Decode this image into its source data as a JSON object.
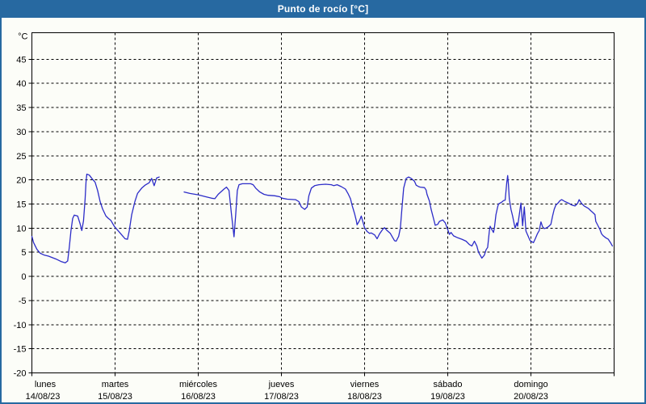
{
  "window": {
    "title": "Punto de rocío [°C]"
  },
  "colors": {
    "header_bg": "#2769a1",
    "header_text": "#ffffff",
    "frame": "#2769a1",
    "background": "#fcfdf8",
    "line": "#2c2cc8",
    "axis": "#000000"
  },
  "chart_data": {
    "type": "line",
    "title": "Punto de rocío [°C]",
    "ylabel": "°C",
    "ylim": [
      -20,
      50.5
    ],
    "yticks": [
      45,
      40,
      35,
      30,
      25,
      20,
      15,
      10,
      5,
      0,
      -5,
      -10,
      -15,
      -20
    ],
    "grid": true,
    "legend": "none",
    "x_axis": {
      "unit": "days from lunes 14/08/23 00:00",
      "days": [
        {
          "name": "lunes",
          "date": "14/08/23"
        },
        {
          "name": "martes",
          "date": "15/08/23"
        },
        {
          "name": "miércoles",
          "date": "16/08/23"
        },
        {
          "name": "jueves",
          "date": "17/08/23"
        },
        {
          "name": "viernes",
          "date": "18/08/23"
        },
        {
          "name": "sábado",
          "date": "19/08/23"
        },
        {
          "name": "domingo",
          "date": "20/08/23"
        }
      ]
    },
    "series": [
      {
        "name": "punto de rocío",
        "color": "#2c2cc8",
        "segments": [
          [
            [
              0.0,
              8.3
            ],
            [
              0.02,
              7.0
            ],
            [
              0.06,
              5.6
            ],
            [
              0.1,
              4.8
            ],
            [
              0.15,
              4.4
            ],
            [
              0.2,
              4.2
            ],
            [
              0.29,
              3.6
            ],
            [
              0.35,
              3.1
            ],
            [
              0.4,
              2.8
            ],
            [
              0.43,
              3.2
            ],
            [
              0.45,
              6.0
            ],
            [
              0.47,
              9.5
            ],
            [
              0.49,
              12.0
            ],
            [
              0.51,
              12.7
            ],
            [
              0.55,
              12.5
            ],
            [
              0.58,
              10.9
            ],
            [
              0.6,
              9.5
            ],
            [
              0.62,
              11.5
            ],
            [
              0.64,
              16.0
            ],
            [
              0.65,
              19.5
            ],
            [
              0.66,
              21.2
            ],
            [
              0.69,
              21.0
            ],
            [
              0.72,
              20.3
            ],
            [
              0.76,
              19.5
            ],
            [
              0.79,
              17.8
            ],
            [
              0.82,
              15.5
            ],
            [
              0.85,
              14.0
            ],
            [
              0.89,
              12.5
            ],
            [
              0.92,
              12.0
            ],
            [
              0.95,
              11.6
            ],
            [
              0.99,
              10.4
            ],
            [
              1.01,
              10.0
            ],
            [
              1.04,
              9.4
            ],
            [
              1.09,
              8.4
            ],
            [
              1.12,
              7.8
            ],
            [
              1.15,
              7.7
            ],
            [
              1.17,
              9.4
            ],
            [
              1.2,
              12.8
            ],
            [
              1.24,
              15.6
            ],
            [
              1.27,
              17.2
            ],
            [
              1.32,
              18.3
            ],
            [
              1.36,
              18.9
            ],
            [
              1.41,
              19.4
            ],
            [
              1.44,
              20.3
            ],
            [
              1.47,
              18.8
            ],
            [
              1.5,
              20.4
            ],
            [
              1.53,
              20.6
            ]
          ],
          [
            [
              1.83,
              17.5
            ],
            [
              1.9,
              17.2
            ],
            [
              2.0,
              16.9
            ],
            [
              2.09,
              16.5
            ],
            [
              2.16,
              16.2
            ],
            [
              2.2,
              16.1
            ],
            [
              2.24,
              17.0
            ],
            [
              2.31,
              18.1
            ],
            [
              2.34,
              18.5
            ],
            [
              2.37,
              17.8
            ],
            [
              2.4,
              12.8
            ],
            [
              2.43,
              8.2
            ],
            [
              2.45,
              12.8
            ],
            [
              2.47,
              17.8
            ],
            [
              2.49,
              19.0
            ],
            [
              2.53,
              19.2
            ],
            [
              2.63,
              19.2
            ],
            [
              2.66,
              19.0
            ],
            [
              2.69,
              18.3
            ],
            [
              2.74,
              17.5
            ],
            [
              2.79,
              17.0
            ],
            [
              2.84,
              16.8
            ],
            [
              2.92,
              16.7
            ],
            [
              2.98,
              16.5
            ],
            [
              3.01,
              16.2
            ],
            [
              3.07,
              16.0
            ],
            [
              3.17,
              15.9
            ],
            [
              3.21,
              15.5
            ],
            [
              3.24,
              14.4
            ],
            [
              3.28,
              13.9
            ],
            [
              3.31,
              14.4
            ],
            [
              3.33,
              16.7
            ],
            [
              3.36,
              18.3
            ],
            [
              3.4,
              18.8
            ],
            [
              3.45,
              19.0
            ],
            [
              3.53,
              19.1
            ],
            [
              3.6,
              19.0
            ],
            [
              3.63,
              18.8
            ],
            [
              3.67,
              19.0
            ],
            [
              3.72,
              18.6
            ],
            [
              3.77,
              18.1
            ],
            [
              3.8,
              17.2
            ],
            [
              3.83,
              16.1
            ],
            [
              3.85,
              14.7
            ],
            [
              3.88,
              13.0
            ],
            [
              3.9,
              11.6
            ],
            [
              3.91,
              10.7
            ],
            [
              3.94,
              11.6
            ],
            [
              3.96,
              12.5
            ],
            [
              3.98,
              11.3
            ],
            [
              4.0,
              10.1
            ],
            [
              4.03,
              9.3
            ],
            [
              4.06,
              8.9
            ],
            [
              4.08,
              9.0
            ],
            [
              4.12,
              8.6
            ],
            [
              4.15,
              7.8
            ],
            [
              4.18,
              8.8
            ],
            [
              4.22,
              9.8
            ],
            [
              4.24,
              10.1
            ],
            [
              4.27,
              9.5
            ],
            [
              4.31,
              8.9
            ],
            [
              4.34,
              8.0
            ],
            [
              4.36,
              7.4
            ],
            [
              4.38,
              7.3
            ],
            [
              4.41,
              8.3
            ],
            [
              4.43,
              10.0
            ],
            [
              4.45,
              14.4
            ],
            [
              4.47,
              18.3
            ],
            [
              4.5,
              20.3
            ],
            [
              4.53,
              20.6
            ],
            [
              4.56,
              20.3
            ],
            [
              4.6,
              19.7
            ],
            [
              4.62,
              18.9
            ],
            [
              4.65,
              18.6
            ],
            [
              4.67,
              18.5
            ],
            [
              4.72,
              18.4
            ],
            [
              4.74,
              17.9
            ],
            [
              4.75,
              17.0
            ],
            [
              4.78,
              15.6
            ],
            [
              4.8,
              13.9
            ],
            [
              4.83,
              11.9
            ],
            [
              4.85,
              10.6
            ],
            [
              4.88,
              10.8
            ],
            [
              4.9,
              11.4
            ],
            [
              4.94,
              11.7
            ],
            [
              4.97,
              11.1
            ],
            [
              5.0,
              9.7
            ],
            [
              5.02,
              8.7
            ],
            [
              5.04,
              9.1
            ],
            [
              5.07,
              8.4
            ],
            [
              5.12,
              8.0
            ],
            [
              5.17,
              7.7
            ],
            [
              5.22,
              7.3
            ],
            [
              5.26,
              6.6
            ],
            [
              5.29,
              6.3
            ],
            [
              5.32,
              7.3
            ],
            [
              5.35,
              6.3
            ],
            [
              5.37,
              5.0
            ],
            [
              5.39,
              4.4
            ],
            [
              5.41,
              3.8
            ],
            [
              5.44,
              4.4
            ],
            [
              5.46,
              5.5
            ],
            [
              5.48,
              6.0
            ],
            [
              5.5,
              9.4
            ],
            [
              5.51,
              10.4
            ],
            [
              5.53,
              9.7
            ],
            [
              5.55,
              9.1
            ],
            [
              5.56,
              10.0
            ],
            [
              5.58,
              12.8
            ],
            [
              5.6,
              14.4
            ],
            [
              5.61,
              15.0
            ],
            [
              5.65,
              15.4
            ],
            [
              5.67,
              15.7
            ],
            [
              5.69,
              15.8
            ],
            [
              5.71,
              19.5
            ],
            [
              5.72,
              20.9
            ],
            [
              5.73,
              18.9
            ],
            [
              5.74,
              16.1
            ],
            [
              5.76,
              13.9
            ],
            [
              5.78,
              12.5
            ],
            [
              5.8,
              10.8
            ],
            [
              5.81,
              10.0
            ],
            [
              5.83,
              11.1
            ],
            [
              5.84,
              10.4
            ],
            [
              5.86,
              12.8
            ],
            [
              5.88,
              15.2
            ],
            [
              5.9,
              10.5
            ],
            [
              5.92,
              14.4
            ],
            [
              5.94,
              9.4
            ],
            [
              5.96,
              8.6
            ],
            [
              5.99,
              7.4
            ],
            [
              6.01,
              7.2
            ],
            [
              6.03,
              7.0
            ],
            [
              6.05,
              7.7
            ],
            [
              6.08,
              8.9
            ],
            [
              6.1,
              9.5
            ],
            [
              6.12,
              11.3
            ],
            [
              6.14,
              10.3
            ],
            [
              6.16,
              9.9
            ],
            [
              6.18,
              10.0
            ],
            [
              6.21,
              10.3
            ],
            [
              6.24,
              10.8
            ],
            [
              6.26,
              12.5
            ],
            [
              6.28,
              13.9
            ],
            [
              6.3,
              14.8
            ],
            [
              6.32,
              15.1
            ],
            [
              6.35,
              15.7
            ],
            [
              6.37,
              15.9
            ],
            [
              6.41,
              15.5
            ],
            [
              6.46,
              15.1
            ],
            [
              6.49,
              14.8
            ],
            [
              6.53,
              14.6
            ],
            [
              6.56,
              15.1
            ],
            [
              6.58,
              15.9
            ],
            [
              6.61,
              15.1
            ],
            [
              6.64,
              14.6
            ],
            [
              6.67,
              14.3
            ],
            [
              6.69,
              14.1
            ],
            [
              6.72,
              13.6
            ],
            [
              6.74,
              13.3
            ],
            [
              6.77,
              12.8
            ],
            [
              6.78,
              11.4
            ],
            [
              6.81,
              10.4
            ],
            [
              6.83,
              9.7
            ],
            [
              6.85,
              8.8
            ],
            [
              6.87,
              8.4
            ],
            [
              6.9,
              8.0
            ],
            [
              6.93,
              7.7
            ],
            [
              6.96,
              6.9
            ],
            [
              6.98,
              6.3
            ]
          ]
        ]
      }
    ]
  }
}
